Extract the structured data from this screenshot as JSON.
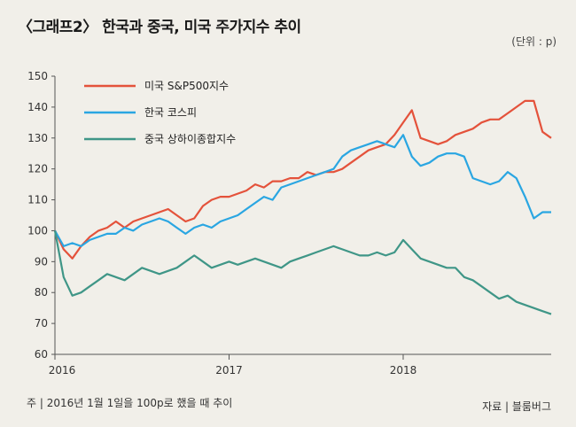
{
  "chart_data": {
    "type": "line",
    "title": "〈그래프2〉 한국과 중국, 미국 주가지수 추이",
    "unit": "(단위 : p)",
    "ylim": [
      60,
      150
    ],
    "yticks": [
      "60",
      "70",
      "80",
      "90",
      "100",
      "110",
      "120",
      "130",
      "140",
      "150"
    ],
    "xticks": [
      "2016",
      "2017",
      "2018"
    ],
    "legend_position": "top-center",
    "colors": {
      "sp500": "#e4523b",
      "kospi": "#2aa6e2",
      "shanghai": "#3f9687",
      "axis": "#555555"
    },
    "x": [
      2016.0,
      2016.05,
      2016.1,
      2016.15,
      2016.2,
      2016.25,
      2016.3,
      2016.35,
      2016.4,
      2016.45,
      2016.5,
      2016.55,
      2016.6,
      2016.65,
      2016.7,
      2016.75,
      2016.8,
      2016.85,
      2016.9,
      2016.95,
      2017.0,
      2017.05,
      2017.1,
      2017.15,
      2017.2,
      2017.25,
      2017.3,
      2017.35,
      2017.4,
      2017.45,
      2017.5,
      2017.55,
      2017.6,
      2017.65,
      2017.7,
      2017.75,
      2017.8,
      2017.85,
      2017.9,
      2017.95,
      2018.0,
      2018.05,
      2018.1,
      2018.15,
      2018.2,
      2018.25,
      2018.3,
      2018.35,
      2018.4,
      2018.45,
      2018.5,
      2018.55,
      2018.6,
      2018.65,
      2018.7,
      2018.75,
      2018.8,
      2018.85
    ],
    "series": [
      {
        "name": "미국 S&P500지수",
        "key": "sp500",
        "values": [
          100,
          94,
          91,
          95,
          98,
          100,
          101,
          103,
          101,
          103,
          104,
          105,
          106,
          107,
          105,
          103,
          104,
          108,
          110,
          111,
          111,
          112,
          113,
          115,
          114,
          116,
          116,
          117,
          117,
          119,
          118,
          119,
          119,
          120,
          122,
          124,
          126,
          127,
          128,
          131,
          135,
          139,
          130,
          129,
          128,
          129,
          131,
          132,
          133,
          135,
          136,
          136,
          138,
          140,
          142,
          142,
          132,
          130
        ]
      },
      {
        "name": "한국 코스피",
        "key": "kospi",
        "values": [
          100,
          95,
          96,
          95,
          97,
          98,
          99,
          99,
          101,
          100,
          102,
          103,
          104,
          103,
          101,
          99,
          101,
          102,
          101,
          103,
          104,
          105,
          107,
          109,
          111,
          110,
          114,
          115,
          116,
          117,
          118,
          119,
          120,
          124,
          126,
          127,
          128,
          129,
          128,
          127,
          131,
          124,
          121,
          122,
          124,
          125,
          125,
          124,
          117,
          116,
          115,
          116,
          119,
          117,
          111,
          104,
          106,
          106
        ]
      },
      {
        "name": "중국 상하이종합지수",
        "key": "shanghai",
        "values": [
          100,
          85,
          79,
          80,
          82,
          84,
          86,
          85,
          84,
          86,
          88,
          87,
          86,
          87,
          88,
          90,
          92,
          90,
          88,
          89,
          90,
          89,
          90,
          91,
          90,
          89,
          88,
          90,
          91,
          92,
          93,
          94,
          95,
          94,
          93,
          92,
          92,
          93,
          92,
          93,
          97,
          94,
          91,
          90,
          89,
          88,
          88,
          85,
          84,
          82,
          80,
          78,
          79,
          77,
          76,
          75,
          74,
          73
        ]
      }
    ]
  },
  "note": "주 | 2016년 1월 1일을 100p로 했을 때 추이",
  "source": "자료 | 블룸버그"
}
